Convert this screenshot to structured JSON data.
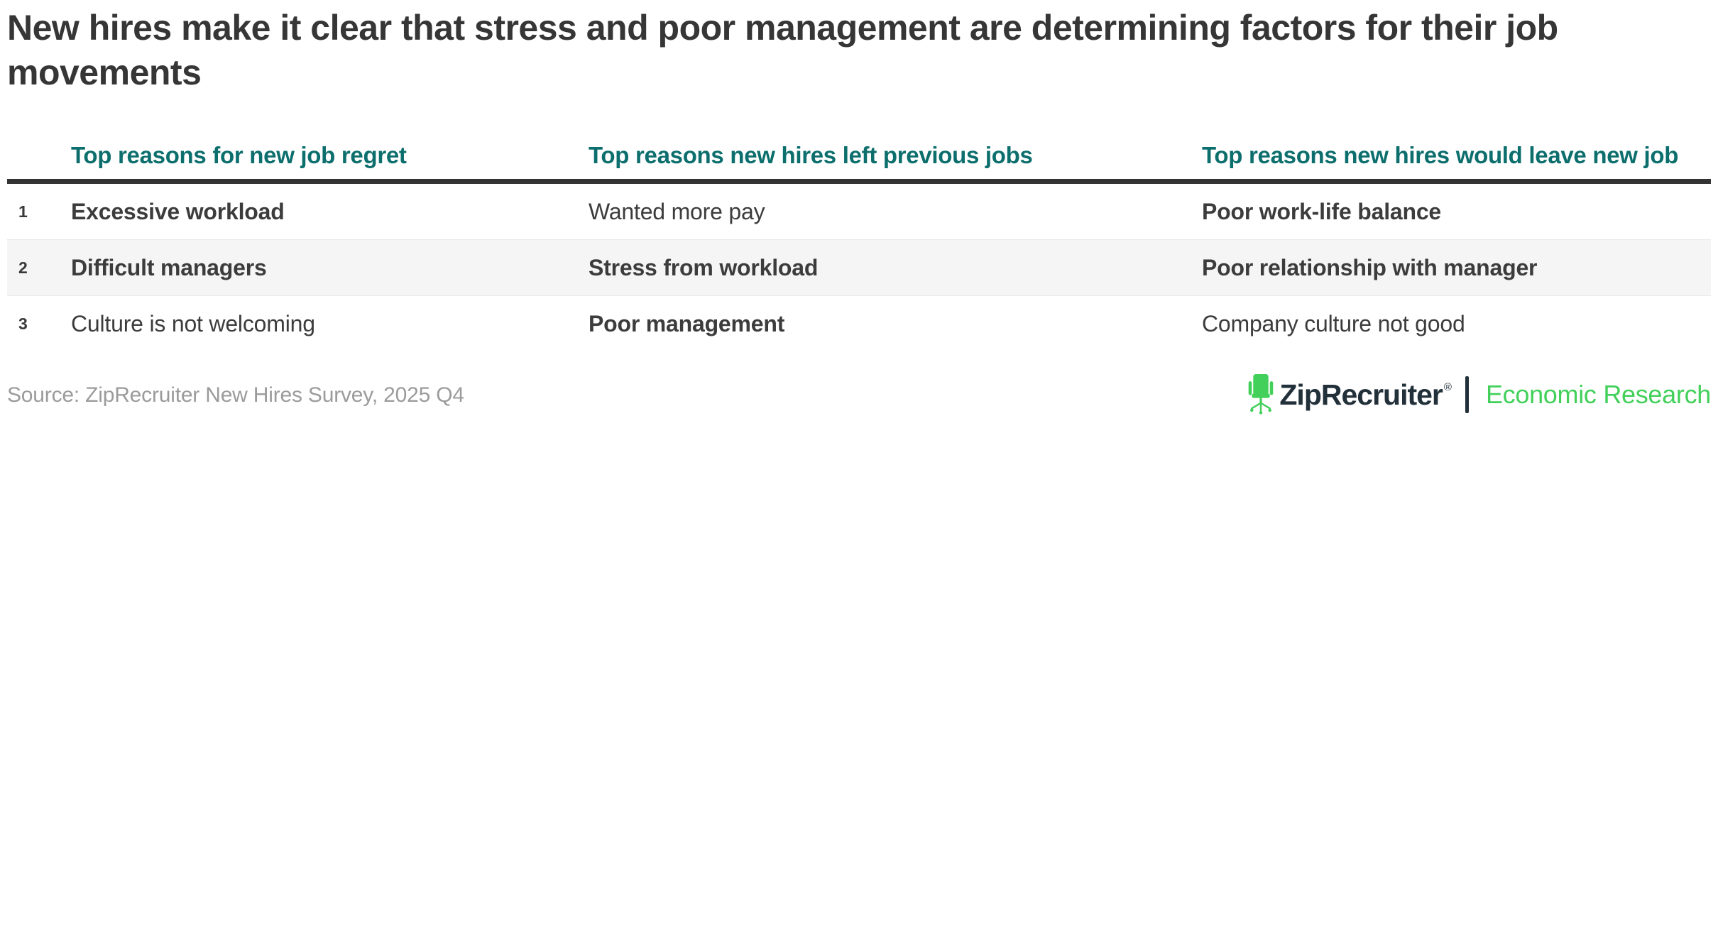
{
  "title": {
    "full": "New hires make it clear that stress and poor management are determining factors for their job movements",
    "line1": "New hires make it clear that stress and poor management are determining factors for their job",
    "line2": "movements"
  },
  "chart_data": {
    "type": "table",
    "title": "New hires make it clear that stress and poor management are determining factors for their job movements",
    "columns": [
      "Top reasons for new job regret",
      "Top reasons new hires left previous jobs",
      "Top reasons new hires would leave new job"
    ],
    "rows": [
      {
        "rank": "1",
        "cells": [
          {
            "text": "Excessive workload",
            "bold": true
          },
          {
            "text": "Wanted more pay",
            "bold": false
          },
          {
            "text": "Poor work-life balance",
            "bold": true
          }
        ]
      },
      {
        "rank": "2",
        "cells": [
          {
            "text": "Difficult managers",
            "bold": true
          },
          {
            "text": "Stress from workload",
            "bold": true
          },
          {
            "text": "Poor relationship with manager",
            "bold": true
          }
        ]
      },
      {
        "rank": "3",
        "cells": [
          {
            "text": "Culture is not welcoming",
            "bold": false
          },
          {
            "text": "Poor management",
            "bold": true
          },
          {
            "text": "Company culture not good",
            "bold": false
          }
        ]
      }
    ],
    "layout_hints": {
      "zebra_row_indices": [
        1
      ],
      "header_rule": "thick-dark"
    }
  },
  "source": "Source: ZipRecruiter New Hires Survey, 2025 Q4",
  "branding": {
    "brand": "ZipRecruiter",
    "registered": "®",
    "division": "Economic Research",
    "chair_icon": "office-chair-icon"
  },
  "colors": {
    "header_teal": "#0d6f6d",
    "title_dark": "#363636",
    "text_dark": "#3c3c3c",
    "rule_dark": "#333333",
    "row_alt_bg": "#f5f5f5",
    "source_gray": "#9b9b9b",
    "brand_dark": "#22303a",
    "brand_green": "#42d05a"
  }
}
